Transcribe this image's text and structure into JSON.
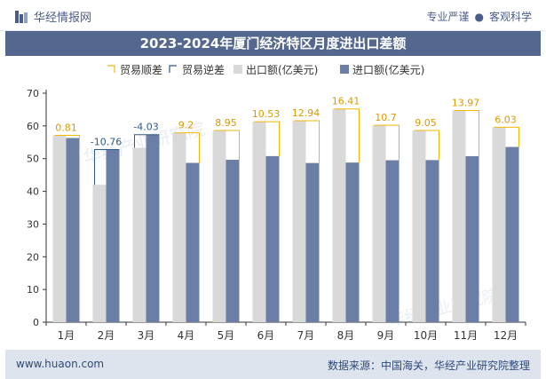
{
  "header": {
    "brand": "华经情报网",
    "slogan_left": "专业严谨",
    "slogan_right": "客观科学"
  },
  "footer": {
    "website": "www.huaon.com",
    "source": "数据来源：中国海关，华经产业研究院整理"
  },
  "watermark": "华经产业研究院",
  "colors": {
    "title_bg": "#54678f",
    "export_bar": "#d9d9d9",
    "import_bar": "#6b7ea6",
    "surplus": "#f2b705",
    "deficit": "#2e5b8a"
  },
  "chart_data": {
    "type": "bar",
    "title": "2023-2024年厦门经济特区月度进出口差额",
    "categories": [
      "1月",
      "2月",
      "3月",
      "4月",
      "5月",
      "6月",
      "7月",
      "8月",
      "9月",
      "10月",
      "11月",
      "12月"
    ],
    "series": [
      {
        "name": "出口额(亿美元)",
        "values": [
          57.1,
          42.0,
          53.3,
          57.9,
          58.6,
          61.3,
          61.6,
          65.2,
          60.2,
          58.6,
          64.7,
          59.6
        ]
      },
      {
        "name": "进口额(亿美元)",
        "values": [
          56.3,
          52.76,
          57.33,
          48.7,
          49.65,
          50.77,
          48.66,
          48.79,
          49.5,
          49.55,
          50.73,
          53.57
        ]
      }
    ],
    "balance": [
      0.81,
      -10.76,
      -4.03,
      9.2,
      8.95,
      10.53,
      12.94,
      16.41,
      10.7,
      9.05,
      13.97,
      6.03
    ],
    "legend": [
      "贸易顺差",
      "贸易逆差",
      "出口额(亿美元)",
      "进口额(亿美元)"
    ],
    "ylim": [
      0,
      70
    ],
    "yticks": [
      0,
      10,
      20,
      30,
      40,
      50,
      60,
      70
    ],
    "xlabel": "",
    "ylabel": "",
    "legend_position": "top-center",
    "grid": false
  }
}
